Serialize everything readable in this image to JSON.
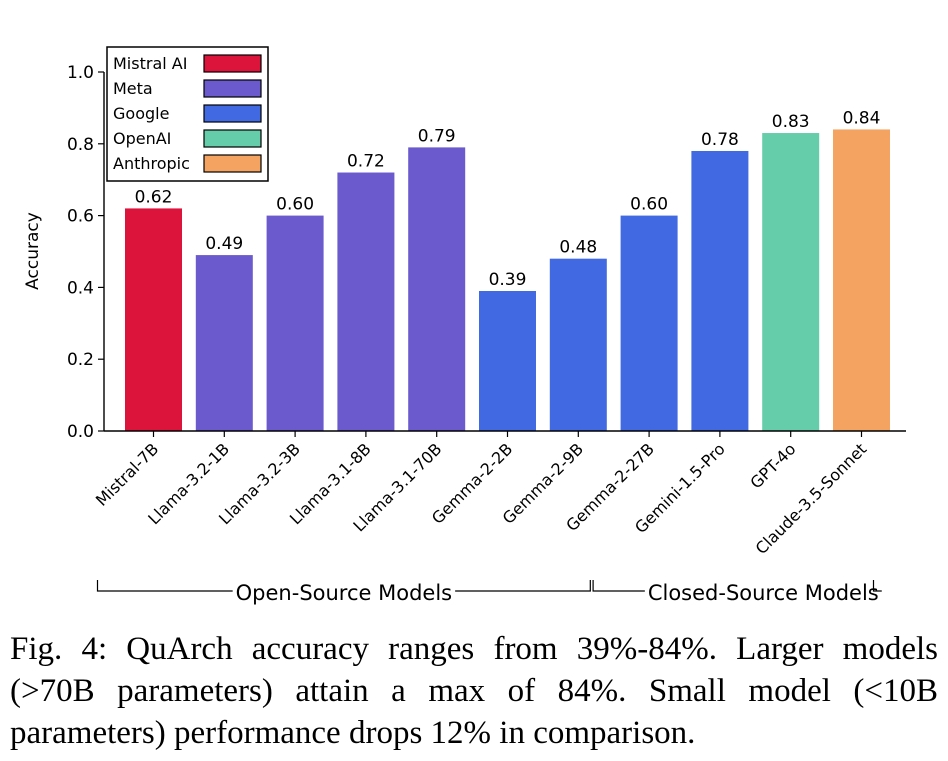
{
  "chart_data": {
    "type": "bar",
    "categories": [
      "Mistral-7B",
      "Llama-3.2-1B",
      "Llama-3.2-3B",
      "Llama-3.1-8B",
      "Llama-3.1-70B",
      "Gemma-2-2B",
      "Gemma-2-9B",
      "Gemma-2-27B",
      "Gemini-1.5-Pro",
      "GPT-4o",
      "Claude-3.5-Sonnet"
    ],
    "values": [
      0.62,
      0.49,
      0.6,
      0.72,
      0.79,
      0.39,
      0.48,
      0.6,
      0.78,
      0.83,
      0.84
    ],
    "value_labels": [
      "0.62",
      "0.49",
      "0.60",
      "0.72",
      "0.79",
      "0.39",
      "0.48",
      "0.60",
      "0.78",
      "0.83",
      "0.84"
    ],
    "bar_groups": [
      "Mistral AI",
      "Meta",
      "Meta",
      "Meta",
      "Meta",
      "Google",
      "Google",
      "Google",
      "Google",
      "OpenAI",
      "Anthropic"
    ],
    "legend": [
      {
        "name": "Mistral AI",
        "color": "#dc143c"
      },
      {
        "name": "Meta",
        "color": "#6a5acd"
      },
      {
        "name": "Google",
        "color": "#4169e1"
      },
      {
        "name": "OpenAI",
        "color": "#66cdaa"
      },
      {
        "name": "Anthropic",
        "color": "#f4a460"
      }
    ],
    "legend_position": "top-left",
    "ylabel": "Accuracy",
    "ylim": [
      0,
      1.0
    ],
    "yticks": [
      0.0,
      0.2,
      0.4,
      0.6,
      0.8,
      1.0
    ],
    "ytick_labels": [
      "0.0",
      "0.2",
      "0.4",
      "0.6",
      "0.8",
      "1.0"
    ],
    "grid": false,
    "brackets": [
      {
        "label": "Open-Source Models",
        "from": "Mistral-7B",
        "to": "Gemma-2-9B"
      },
      {
        "label": "Closed-Source Models",
        "from": "Gemma-2-27B",
        "to": "Claude-3.5-Sonnet"
      }
    ]
  },
  "caption": "Fig. 4: QuArch accuracy ranges from 39%-84%. Larger models (>70B parameters) attain a max of 84%. Small model (<10B parameters) performance drops 12% in comparison."
}
